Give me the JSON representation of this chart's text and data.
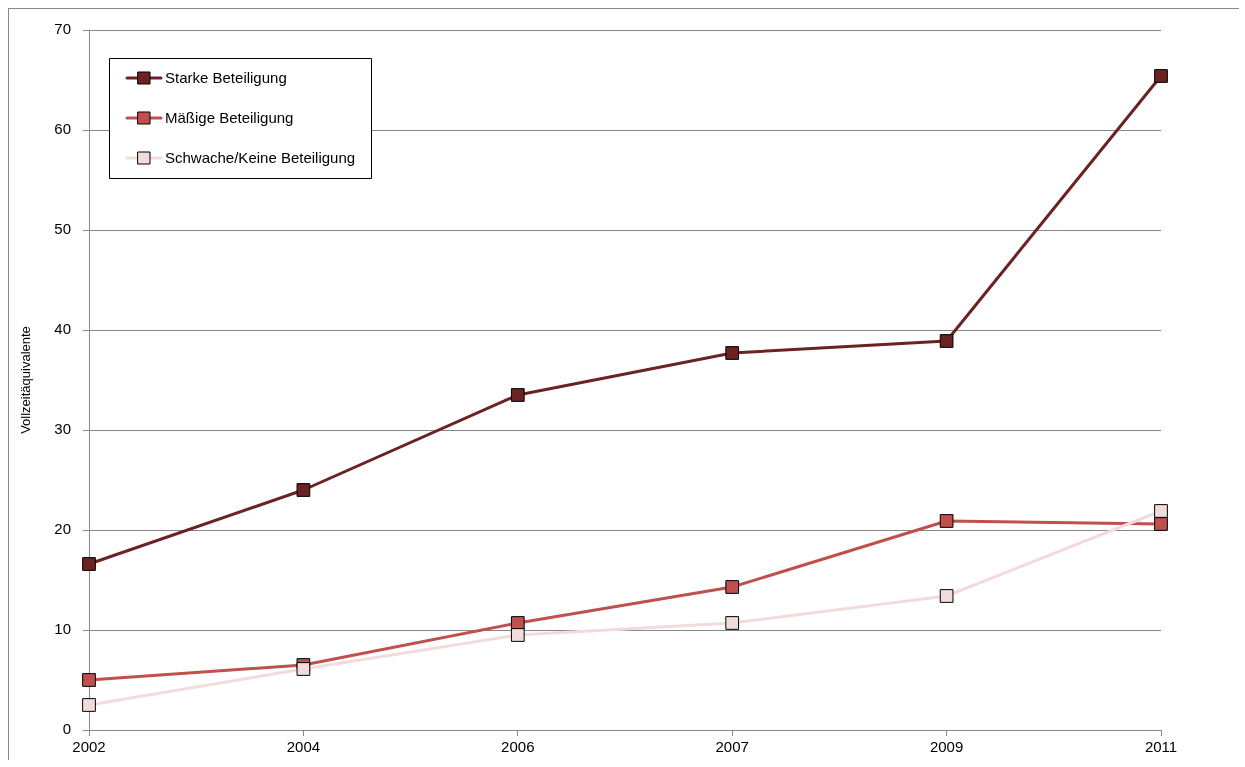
{
  "chart_data": {
    "type": "line",
    "ylabel": "Vollzeitäquivalente",
    "categories": [
      "2002",
      "2004",
      "2006",
      "2007",
      "2009",
      "2011"
    ],
    "series": [
      {
        "name": "Starke Beteiligung",
        "color": "#6b2222",
        "values": [
          16.6,
          24.0,
          33.5,
          37.7,
          38.9,
          65.4
        ]
      },
      {
        "name": "Mäßige Beteiligung",
        "color": "#c0504d",
        "values": [
          5.0,
          6.5,
          10.7,
          14.3,
          20.9,
          20.6
        ]
      },
      {
        "name": "Schwache/Keine Beteiligung",
        "color": "#f2dcdb",
        "values": [
          2.5,
          6.1,
          9.5,
          10.7,
          13.4,
          21.9
        ]
      }
    ],
    "ylim": [
      0,
      70
    ],
    "yticks": [
      0,
      10,
      20,
      30,
      40,
      50,
      60,
      70
    ],
    "grid": "y",
    "legend": "top left",
    "marker": "square",
    "line_style": "solid"
  }
}
